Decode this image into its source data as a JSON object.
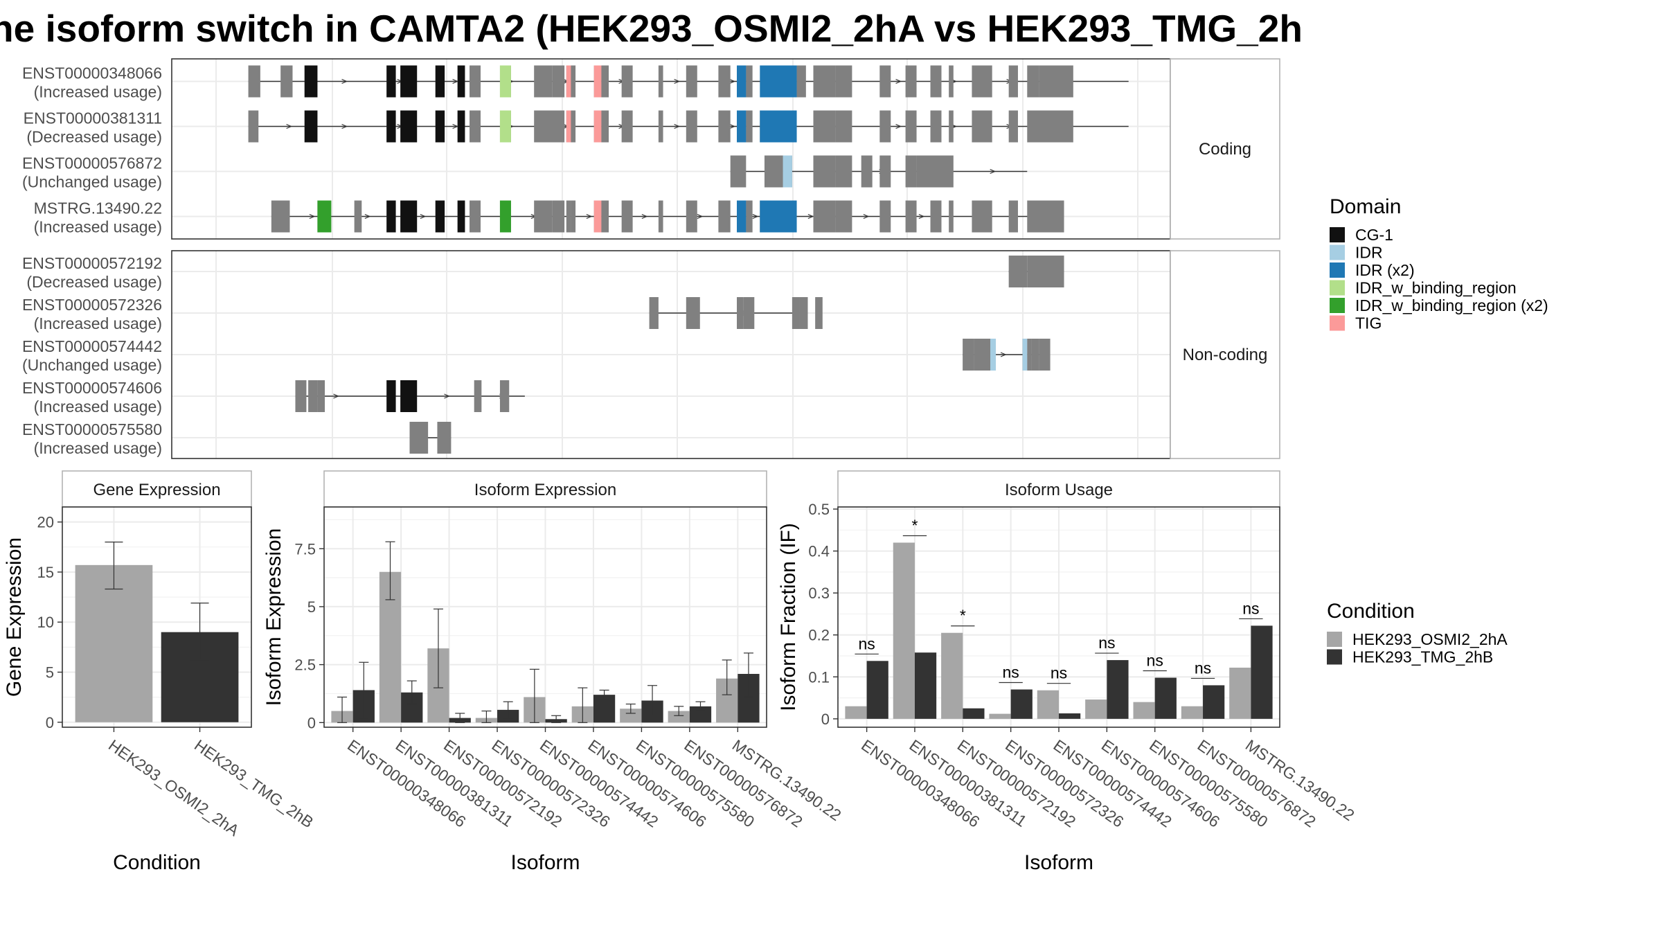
{
  "title": "ne isoform switch in CAMTA2 (HEK293_OSMI2_2hA vs HEK293_TMG_2h",
  "colors": {
    "exon": "#808080",
    "condition1": "#a6a6a6",
    "condition2": "#333333",
    "domains": {
      "CG-1": "#111111",
      "IDR": "#a6cee3",
      "IDR (x2)": "#1f78b4",
      "IDR_w_binding_region": "#b2df8a",
      "IDR_w_binding_region (x2)": "#33a02c",
      "TIG": "#fb9a99"
    }
  },
  "structure": {
    "xrange": [
      0,
      1000
    ],
    "panels": [
      {
        "label": "Coding",
        "transcripts": [
          {
            "id": "ENST00000348066",
            "status": "(Increased usage)",
            "start": 35,
            "end": 990,
            "exons": [
              [
                35,
                48
              ],
              [
                70,
                83
              ],
              [
                96,
                110
              ],
              [
                185,
                195
              ],
              [
                200,
                218
              ],
              [
                238,
                248
              ],
              [
                262,
                270
              ],
              [
                275,
                287
              ],
              [
                308,
                320
              ],
              [
                345,
                365
              ],
              [
                365,
                378
              ],
              [
                380,
                385
              ],
              [
                385,
                390
              ],
              [
                410,
                418
              ],
              [
                418,
                426
              ],
              [
                440,
                452
              ],
              [
                480,
                485
              ],
              [
                510,
                522
              ],
              [
                545,
                558
              ],
              [
                565,
                575
              ],
              [
                575,
                582
              ],
              [
                610,
                630
              ],
              [
                630,
                640
              ],
              [
                648,
                672
              ],
              [
                672,
                690
              ],
              [
                720,
                732
              ],
              [
                748,
                760
              ],
              [
                775,
                787
              ],
              [
                795,
                800
              ],
              [
                820,
                842
              ],
              [
                860,
                870
              ],
              [
                880,
                893
              ],
              [
                893,
                930
              ]
            ],
            "domains": [
              [
                96,
                110,
                "CG-1"
              ],
              [
                185,
                195,
                "CG-1"
              ],
              [
                200,
                218,
                "CG-1"
              ],
              [
                238,
                248,
                "CG-1"
              ],
              [
                262,
                270,
                "CG-1"
              ],
              [
                308,
                320,
                "IDR_w_binding_region"
              ],
              [
                380,
                385,
                "TIG"
              ],
              [
                410,
                418,
                "TIG"
              ],
              [
                565,
                575,
                "IDR (x2)"
              ],
              [
                590,
                630,
                "IDR (x2)"
              ]
            ]
          },
          {
            "id": "ENST00000381311",
            "status": "(Decreased usage)",
            "start": 35,
            "end": 990,
            "exons": [
              [
                35,
                46
              ],
              [
                96,
                110
              ],
              [
                185,
                195
              ],
              [
                200,
                218
              ],
              [
                238,
                248
              ],
              [
                262,
                270
              ],
              [
                275,
                287
              ],
              [
                308,
                320
              ],
              [
                345,
                378
              ],
              [
                380,
                385
              ],
              [
                385,
                390
              ],
              [
                410,
                418
              ],
              [
                418,
                426
              ],
              [
                440,
                452
              ],
              [
                480,
                485
              ],
              [
                510,
                522
              ],
              [
                545,
                558
              ],
              [
                565,
                575
              ],
              [
                575,
                582
              ],
              [
                590,
                630
              ],
              [
                648,
                672
              ],
              [
                672,
                690
              ],
              [
                720,
                732
              ],
              [
                748,
                760
              ],
              [
                775,
                787
              ],
              [
                795,
                800
              ],
              [
                820,
                842
              ],
              [
                860,
                870
              ],
              [
                880,
                930
              ]
            ],
            "domains": [
              [
                96,
                110,
                "CG-1"
              ],
              [
                185,
                195,
                "CG-1"
              ],
              [
                200,
                218,
                "CG-1"
              ],
              [
                238,
                248,
                "CG-1"
              ],
              [
                262,
                270,
                "CG-1"
              ],
              [
                308,
                320,
                "IDR_w_binding_region"
              ],
              [
                380,
                385,
                "TIG"
              ],
              [
                410,
                418,
                "TIG"
              ],
              [
                565,
                575,
                "IDR (x2)"
              ],
              [
                590,
                630,
                "IDR (x2)"
              ]
            ]
          },
          {
            "id": "ENST00000576872",
            "status": "(Unchanged usage)",
            "start": 558,
            "end": 880,
            "exons": [
              [
                558,
                575
              ],
              [
                595,
                615
              ],
              [
                615,
                625
              ],
              [
                648,
                672
              ],
              [
                672,
                690
              ],
              [
                700,
                712
              ],
              [
                720,
                732
              ],
              [
                748,
                760
              ],
              [
                760,
                800
              ]
            ],
            "domains": [
              [
                615,
                625,
                "IDR"
              ]
            ]
          },
          {
            "id": "MSTRG.13490.22",
            "status": "(Increased usage)",
            "start": 60,
            "end": 920,
            "exons": [
              [
                60,
                80
              ],
              [
                110,
                125
              ],
              [
                150,
                158
              ],
              [
                185,
                195
              ],
              [
                200,
                218
              ],
              [
                238,
                248
              ],
              [
                262,
                270
              ],
              [
                275,
                287
              ],
              [
                308,
                320
              ],
              [
                345,
                365
              ],
              [
                365,
                378
              ],
              [
                380,
                385
              ],
              [
                385,
                390
              ],
              [
                410,
                418
              ],
              [
                418,
                426
              ],
              [
                440,
                452
              ],
              [
                480,
                485
              ],
              [
                510,
                522
              ],
              [
                545,
                558
              ],
              [
                565,
                575
              ],
              [
                575,
                582
              ],
              [
                590,
                630
              ],
              [
                648,
                672
              ],
              [
                672,
                690
              ],
              [
                720,
                732
              ],
              [
                748,
                760
              ],
              [
                775,
                787
              ],
              [
                795,
                800
              ],
              [
                820,
                842
              ],
              [
                860,
                870
              ],
              [
                880,
                920
              ]
            ],
            "domains": [
              [
                110,
                125,
                "IDR_w_binding_region (x2)"
              ],
              [
                185,
                195,
                "CG-1"
              ],
              [
                200,
                218,
                "CG-1"
              ],
              [
                238,
                248,
                "CG-1"
              ],
              [
                262,
                270,
                "CG-1"
              ],
              [
                308,
                320,
                "IDR_w_binding_region (x2)"
              ],
              [
                410,
                418,
                "TIG"
              ],
              [
                565,
                575,
                "IDR (x2)"
              ],
              [
                590,
                630,
                "IDR (x2)"
              ]
            ]
          }
        ]
      },
      {
        "label": "Non-coding",
        "transcripts": [
          {
            "id": "ENST00000572192",
            "status": "(Decreased usage)",
            "start": 860,
            "end": 920,
            "exons": [
              [
                860,
                880
              ],
              [
                880,
                920
              ]
            ],
            "domains": []
          },
          {
            "id": "ENST00000572326",
            "status": "(Increased usage)",
            "start": 470,
            "end": 640,
            "exons": [
              [
                470,
                480
              ],
              [
                510,
                525
              ],
              [
                565,
                572
              ],
              [
                572,
                584
              ],
              [
                625,
                633
              ],
              [
                633,
                642
              ],
              [
                650,
                658
              ]
            ],
            "domains": []
          },
          {
            "id": "ENST00000574442",
            "status": "(Unchanged usage)",
            "start": 810,
            "end": 900,
            "exons": [
              [
                810,
                822
              ],
              [
                822,
                840
              ],
              [
                840,
                846
              ],
              [
                875,
                880
              ],
              [
                880,
                885
              ],
              [
                885,
                893
              ],
              [
                893,
                905
              ]
            ],
            "domains": [
              [
                840,
                846,
                "IDR"
              ],
              [
                875,
                880,
                "IDR"
              ]
            ]
          },
          {
            "id": "ENST00000574606",
            "status": "(Increased usage)",
            "start": 86,
            "end": 335,
            "exons": [
              [
                86,
                98
              ],
              [
                100,
                110
              ],
              [
                110,
                118
              ],
              [
                185,
                195
              ],
              [
                200,
                218
              ],
              [
                280,
                288
              ],
              [
                308,
                318
              ]
            ],
            "domains": [
              [
                185,
                195,
                "CG-1"
              ],
              [
                200,
                218,
                "CG-1"
              ]
            ]
          },
          {
            "id": "ENST00000575580",
            "status": "(Increased usage)",
            "start": 210,
            "end": 255,
            "exons": [
              [
                210,
                230
              ],
              [
                240,
                255
              ]
            ],
            "domains": []
          }
        ]
      }
    ]
  },
  "legend_domain": {
    "title": "Domain",
    "items": [
      "CG-1",
      "IDR",
      "IDR (x2)",
      "IDR_w_binding_region",
      "IDR_w_binding_region (x2)",
      "TIG"
    ]
  },
  "legend_condition": {
    "title": "Condition",
    "items": [
      "HEK293_OSMI2_2hA",
      "HEK293_TMG_2hB"
    ]
  },
  "chart_data": [
    {
      "type": "bar",
      "title": "Gene Expression",
      "xlabel": "Condition",
      "ylabel": "Gene Expression",
      "ylim": [
        -0.5,
        21.5
      ],
      "yticks": [
        0,
        5,
        10,
        15,
        20
      ],
      "categories": [
        "HEK293_OSMI2_2hA",
        "HEK293_TMG_2hB"
      ],
      "values": [
        15.7,
        9.0
      ],
      "errors": [
        [
          13.3,
          18.0
        ],
        [
          6.2,
          11.9
        ]
      ]
    },
    {
      "type": "bar",
      "title": "Isoform Expression",
      "xlabel": "Isoform",
      "ylabel": "Isoform Expression",
      "ylim": [
        -0.2,
        9.3
      ],
      "yticks": [
        0.0,
        2.5,
        5.0,
        7.5
      ],
      "categories": [
        "ENST00000348066",
        "ENST00000381311",
        "ENST00000572192",
        "ENST00000572326",
        "ENST00000574442",
        "ENST00000574606",
        "ENST00000575580",
        "ENST00000576872",
        "MSTRG.13490.22"
      ],
      "series": [
        {
          "name": "HEK293_OSMI2_2hA",
          "values": [
            0.5,
            6.5,
            3.2,
            0.2,
            1.1,
            0.7,
            0.6,
            0.5,
            1.9
          ],
          "errors": [
            [
              0.0,
              1.1
            ],
            [
              5.3,
              7.8
            ],
            [
              1.5,
              4.9
            ],
            [
              0.0,
              0.5
            ],
            [
              0.0,
              2.3
            ],
            [
              0.0,
              1.5
            ],
            [
              0.4,
              0.8
            ],
            [
              0.3,
              0.7
            ],
            [
              1.2,
              2.7
            ]
          ]
        },
        {
          "name": "HEK293_TMG_2hB",
          "values": [
            1.4,
            1.3,
            0.2,
            0.55,
            0.15,
            1.2,
            0.95,
            0.7,
            2.1
          ],
          "errors": [
            [
              0.2,
              2.6
            ],
            [
              0.8,
              1.8
            ],
            [
              0.0,
              0.4
            ],
            [
              0.2,
              0.9
            ],
            [
              0.0,
              0.3
            ],
            [
              1.0,
              1.4
            ],
            [
              0.3,
              1.6
            ],
            [
              0.5,
              0.9
            ],
            [
              1.1,
              3.0
            ]
          ]
        }
      ]
    },
    {
      "type": "bar",
      "title": "Isoform Usage",
      "xlabel": "Isoform",
      "ylabel": "Isoform Fraction (IF)",
      "ylim": [
        -0.02,
        0.505
      ],
      "yticks": [
        0.0,
        0.1,
        0.2,
        0.3,
        0.4,
        0.5
      ],
      "categories": [
        "ENST00000348066",
        "ENST00000381311",
        "ENST00000572192",
        "ENST00000572326",
        "ENST00000574442",
        "ENST00000574606",
        "ENST00000575580",
        "ENST00000576872",
        "MSTRG.13490.22"
      ],
      "series": [
        {
          "name": "HEK293_OSMI2_2hA",
          "values": [
            0.03,
            0.42,
            0.205,
            0.012,
            0.068,
            0.046,
            0.04,
            0.03,
            0.122
          ]
        },
        {
          "name": "HEK293_TMG_2hB",
          "values": [
            0.138,
            0.158,
            0.025,
            0.07,
            0.013,
            0.14,
            0.098,
            0.08,
            0.222
          ]
        }
      ],
      "significance": [
        "ns",
        "*",
        "*",
        "ns",
        "ns",
        "ns",
        "ns",
        "ns",
        "ns"
      ]
    }
  ]
}
